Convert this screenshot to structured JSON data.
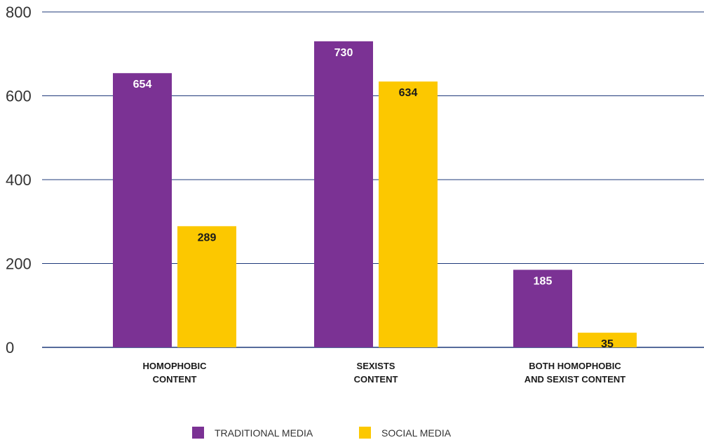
{
  "chart_data": {
    "type": "bar",
    "title": "",
    "xlabel": "",
    "ylabel": "",
    "ylim": [
      0,
      800
    ],
    "yticks": [
      0,
      200,
      400,
      600,
      800
    ],
    "grid": true,
    "legend_position": "bottom",
    "categories": [
      [
        "HOMOPHOBIC",
        "CONTENT"
      ],
      [
        "SEXISTS",
        "CONTENT"
      ],
      [
        "BOTH HOMOPHOBIC",
        "AND SEXIST CONTENT"
      ]
    ],
    "series": [
      {
        "name": "TRADITIONAL MEDIA",
        "color": "#7b3294",
        "label_color": "#ffffff",
        "values": [
          654,
          730,
          185
        ]
      },
      {
        "name": "SOCIAL MEDIA",
        "color": "#fcc800",
        "label_color": "#1a1a1a",
        "values": [
          289,
          634,
          35
        ]
      }
    ],
    "grid_color": "#1f3a7a"
  }
}
